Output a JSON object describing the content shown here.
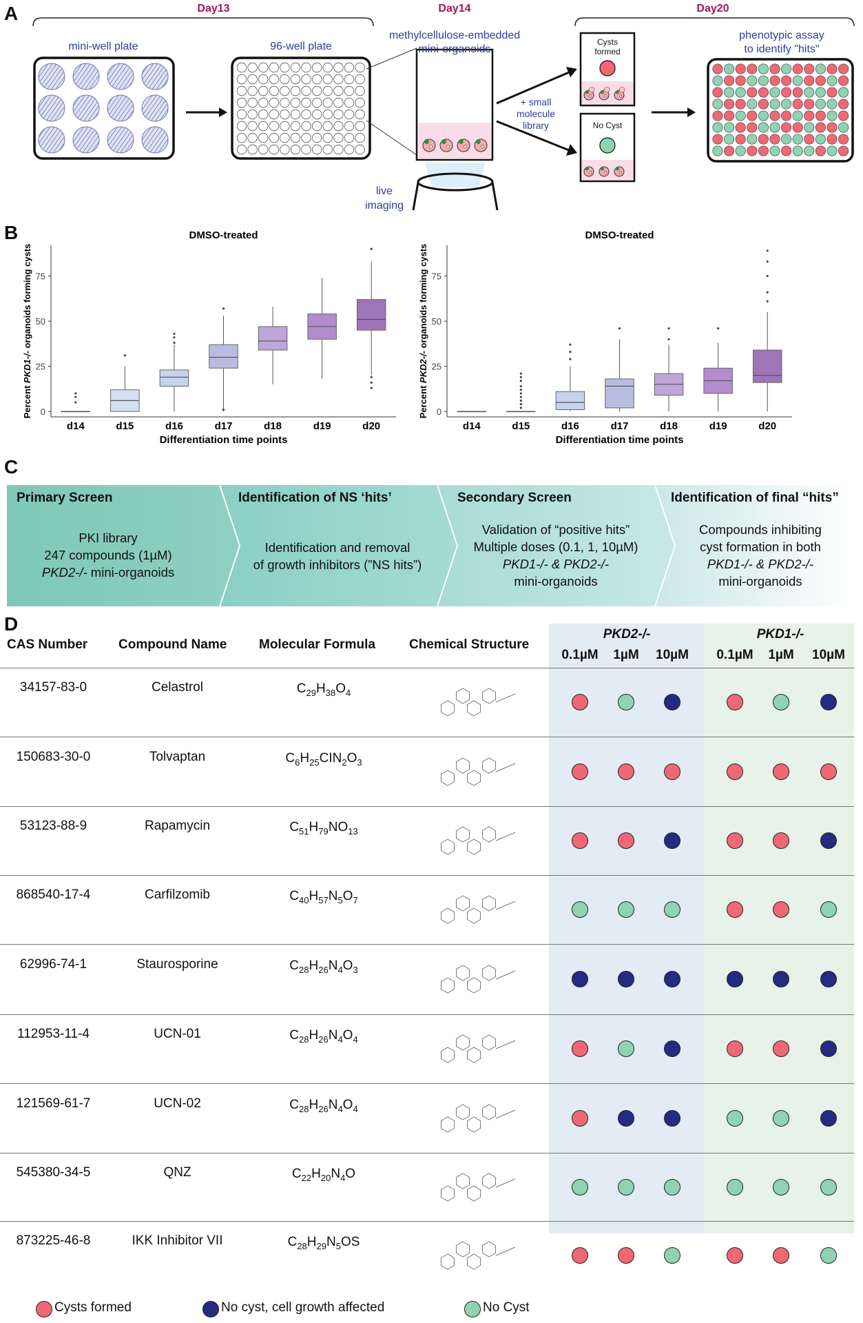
{
  "panel_labels": {
    "a": "A",
    "b": "B",
    "c": "C",
    "d": "D"
  },
  "colors": {
    "cyst": "#f06775",
    "growth": "#232b84",
    "nocyst": "#8fd3b3",
    "day": "#a0145a",
    "blue_text": "#2f3d9a",
    "pkd2_bg": "#e3ebf4",
    "pkd1_bg": "#e7f2e8",
    "teal": "#80c9b8"
  },
  "panel_a": {
    "day13": "Day13",
    "day14": "Day14",
    "day20": "Day20",
    "mini_well_plate": "mini-well plate",
    "well_plate_96": "96-well plate",
    "methylcellulose_l1": "methylcellulose-embedded",
    "methylcellulose_l2": "mini-organoids",
    "small_mol_l1": "+ small",
    "small_mol_l2": "molecule",
    "small_mol_l3": "library",
    "live_l1": "live",
    "live_l2": "imaging",
    "cysts_formed_l1": "Cysts",
    "cysts_formed_l2": "formed",
    "no_cyst": "No Cyst",
    "assay_l1": "phenotypic assay",
    "assay_l2": "to identify \"hits\"",
    "assay_pattern": [
      [
        "r",
        "g",
        "r",
        "r",
        "g",
        "r",
        "g",
        "r",
        "r",
        "g",
        "r",
        "r"
      ],
      [
        "g",
        "r",
        "r",
        "g",
        "g",
        "r",
        "r",
        "g",
        "r",
        "r",
        "g",
        "r"
      ],
      [
        "r",
        "g",
        "g",
        "r",
        "r",
        "g",
        "r",
        "r",
        "g",
        "g",
        "r",
        "g"
      ],
      [
        "g",
        "r",
        "r",
        "g",
        "r",
        "g",
        "g",
        "r",
        "r",
        "g",
        "g",
        "r"
      ],
      [
        "r",
        "r",
        "g",
        "r",
        "g",
        "r",
        "r",
        "g",
        "r",
        "r",
        "g",
        "r"
      ],
      [
        "g",
        "g",
        "r",
        "r",
        "g",
        "g",
        "r",
        "r",
        "g",
        "r",
        "r",
        "g"
      ],
      [
        "r",
        "g",
        "r",
        "g",
        "r",
        "r",
        "g",
        "g",
        "r",
        "g",
        "r",
        "r"
      ],
      [
        "g",
        "r",
        "g",
        "r",
        "r",
        "g",
        "r",
        "g",
        "g",
        "r",
        "g",
        "r"
      ]
    ]
  },
  "chart_data": [
    {
      "type": "box",
      "title": "DMSO-treated",
      "ylabel_prefix": "Percent ",
      "ylabel_gene": "PKD1-/-",
      "ylabel_suffix": " organoids forming cysts",
      "xlabel": "Differentiation time points",
      "categories": [
        "d14",
        "d15",
        "d16",
        "d17",
        "d18",
        "d19",
        "d20"
      ],
      "yticks": [
        0,
        25,
        50,
        75
      ],
      "ylim": [
        -3,
        92
      ],
      "boxes": [
        {
          "min": 0,
          "q1": 0,
          "median": 0,
          "q3": 0,
          "max": 0
        },
        {
          "min": 0,
          "q1": 0,
          "median": 6,
          "q3": 12,
          "max": 25
        },
        {
          "min": 0,
          "q1": 14,
          "median": 19,
          "q3": 23,
          "max": 37
        },
        {
          "min": 0,
          "q1": 24,
          "median": 30,
          "q3": 37,
          "max": 53
        },
        {
          "min": 15,
          "q1": 34,
          "median": 39,
          "q3": 47,
          "max": 58
        },
        {
          "min": 18,
          "q1": 40,
          "median": 47,
          "q3": 54,
          "max": 74
        },
        {
          "min": 20,
          "q1": 45,
          "median": 51,
          "q3": 62,
          "max": 83
        }
      ],
      "outliers": [
        [
          0,
          5
        ],
        [
          0,
          8
        ],
        [
          0,
          10
        ],
        [
          1,
          31
        ],
        [
          2,
          38
        ],
        [
          2,
          41
        ],
        [
          2,
          43
        ],
        [
          3,
          1
        ],
        [
          3,
          57
        ],
        [
          6,
          13
        ],
        [
          6,
          16
        ],
        [
          6,
          19
        ],
        [
          6,
          90
        ]
      ],
      "fills": [
        "#e4ecf7",
        "#d3def1",
        "#c6d3ec",
        "#b8bde0",
        "#bea6d8",
        "#b28ccd",
        "#9e75b6"
      ]
    },
    {
      "type": "box",
      "title": "DMSO-treated",
      "ylabel_prefix": "Percent ",
      "ylabel_gene": "PKD2-/-",
      "ylabel_suffix": " organoids forming cysts",
      "xlabel": "Differentiation time points",
      "categories": [
        "d14",
        "d15",
        "d16",
        "d17",
        "d18",
        "d19",
        "d20"
      ],
      "yticks": [
        0,
        25,
        50,
        75
      ],
      "ylim": [
        -3,
        92
      ],
      "boxes": [
        {
          "min": 0,
          "q1": 0,
          "median": 0,
          "q3": 0,
          "max": 0
        },
        {
          "min": 0,
          "q1": 0,
          "median": 0,
          "q3": 0,
          "max": 0
        },
        {
          "min": 0,
          "q1": 1,
          "median": 5,
          "q3": 11,
          "max": 25
        },
        {
          "min": 0,
          "q1": 2,
          "median": 14,
          "q3": 18,
          "max": 40
        },
        {
          "min": 0,
          "q1": 9,
          "median": 15,
          "q3": 21,
          "max": 37
        },
        {
          "min": 0,
          "q1": 10,
          "median": 17,
          "q3": 24,
          "max": 38
        },
        {
          "min": 0,
          "q1": 16,
          "median": 20,
          "q3": 34,
          "max": 55
        }
      ],
      "outliers": [
        [
          1,
          2
        ],
        [
          1,
          4
        ],
        [
          1,
          6
        ],
        [
          1,
          8
        ],
        [
          1,
          10
        ],
        [
          1,
          12
        ],
        [
          1,
          14
        ],
        [
          1,
          17
        ],
        [
          1,
          19
        ],
        [
          1,
          21
        ],
        [
          2,
          29
        ],
        [
          2,
          33
        ],
        [
          2,
          37
        ],
        [
          3,
          46
        ],
        [
          4,
          40
        ],
        [
          4,
          46
        ],
        [
          5,
          46
        ],
        [
          6,
          61
        ],
        [
          6,
          66
        ],
        [
          6,
          75
        ],
        [
          6,
          83
        ],
        [
          6,
          89
        ]
      ],
      "fills": [
        "#e4ecf7",
        "#d3def1",
        "#c6d3ec",
        "#b8bde0",
        "#bea6d8",
        "#b28ccd",
        "#9e75b6"
      ]
    }
  ],
  "panel_c": [
    {
      "title": "Primary Screen",
      "lines": [
        "PKI library",
        "247 compounds (1µM)",
        "PKD2-/- mini-organoids"
      ]
    },
    {
      "title": "Identification of NS ‘hits’",
      "lines": [
        "Identification and removal",
        "of growth inhibitors (”NS hits”)"
      ]
    },
    {
      "title": "Secondary Screen",
      "lines": [
        "Validation of “positive hits”",
        "Multiple doses (0.1, 1, 10µM)",
        "PKD1-/- & PKD2-/-",
        "mini-organoids"
      ]
    },
    {
      "title": "Identification of final “hits”",
      "lines": [
        "Compounds inhibiting",
        "cyst formation in both",
        "PKD1-/- & PKD2-/-",
        "mini-organoids"
      ]
    }
  ],
  "panel_d": {
    "headers": {
      "cas": "CAS Number",
      "name": "Compound Name",
      "formula": "Molecular Formula",
      "structure": "Chemical Structure",
      "pkd2": "PKD2-/-",
      "pkd1": "PKD1-/-"
    },
    "doses": [
      "0.1µM",
      "1µM",
      "10µM"
    ],
    "rows": [
      {
        "cas": "34157-83-0",
        "name": "Celastrol",
        "formula": [
          "C",
          "29",
          "H",
          "38",
          "O",
          "4"
        ],
        "pkd2": [
          "r",
          "g",
          "b"
        ],
        "pkd1": [
          "r",
          "g",
          "b"
        ]
      },
      {
        "cas": "150683-30-0",
        "name": "Tolvaptan",
        "formula": [
          "C",
          "6",
          "H",
          "25",
          "CIN",
          "2",
          "O",
          "3"
        ],
        "pkd2": [
          "r",
          "r",
          "r"
        ],
        "pkd1": [
          "r",
          "r",
          "r"
        ]
      },
      {
        "cas": "53123-88-9",
        "name": "Rapamycin",
        "formula": [
          "C",
          "51",
          "H",
          "79",
          "NO",
          "13"
        ],
        "pkd2": [
          "r",
          "r",
          "b"
        ],
        "pkd1": [
          "r",
          "r",
          "b"
        ]
      },
      {
        "cas": "868540-17-4",
        "name": "Carfilzomib",
        "formula": [
          "C",
          "40",
          "H",
          "57",
          "N",
          "5",
          "O",
          "7"
        ],
        "pkd2": [
          "g",
          "g",
          "g"
        ],
        "pkd1": [
          "r",
          "r",
          "g"
        ]
      },
      {
        "cas": "62996-74-1",
        "name": "Staurosporine",
        "formula": [
          "C",
          "28",
          "H",
          "26",
          "N",
          "4",
          "O",
          "3"
        ],
        "pkd2": [
          "b",
          "b",
          "b"
        ],
        "pkd1": [
          "b",
          "b",
          "b"
        ]
      },
      {
        "cas": "112953-11-4",
        "name": "UCN-01",
        "formula": [
          "C",
          "28",
          "H",
          "26",
          "N",
          "4",
          "O",
          "4"
        ],
        "pkd2": [
          "r",
          "g",
          "b"
        ],
        "pkd1": [
          "r",
          "r",
          "b"
        ]
      },
      {
        "cas": "121569-61-7",
        "name": "UCN-02",
        "formula": [
          "C",
          "28",
          "H",
          "26",
          "N",
          "4",
          "O",
          "4"
        ],
        "pkd2": [
          "r",
          "b",
          "b"
        ],
        "pkd1": [
          "g",
          "g",
          "b"
        ]
      },
      {
        "cas": "545380-34-5",
        "name": "QNZ",
        "formula": [
          "C",
          "22",
          "H",
          "20",
          "N",
          "4",
          "O"
        ],
        "pkd2": [
          "g",
          "g",
          "g"
        ],
        "pkd1": [
          "g",
          "g",
          "g"
        ]
      },
      {
        "cas": "873225-46-8",
        "name": "IKK Inhibitor VII",
        "formula": [
          "C",
          "28",
          "H",
          "29",
          "N",
          "5",
          "OS"
        ],
        "pkd2": [
          "r",
          "r",
          "g"
        ],
        "pkd1": [
          "r",
          "r",
          "g"
        ]
      }
    ],
    "legend": {
      "cyst": "Cysts formed",
      "growth": "No cyst, cell growth affected",
      "nocyst": "No Cyst"
    }
  }
}
